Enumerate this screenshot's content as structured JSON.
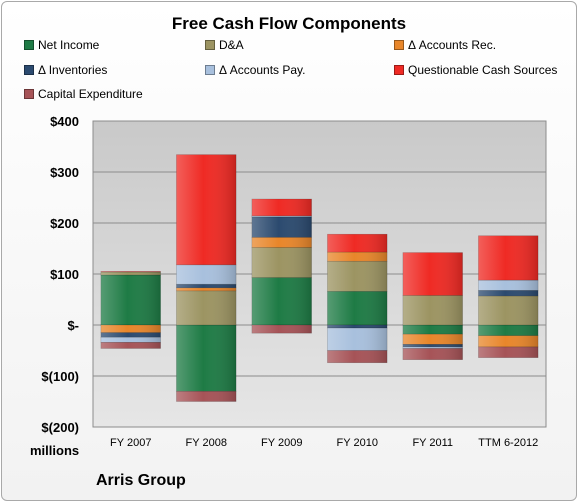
{
  "units_label": "millions",
  "company_label": "Arris Group",
  "chart_data": {
    "type": "bar",
    "stacked": true,
    "title": "Free Cash Flow Components",
    "xlabel": "",
    "ylabel": "",
    "ylim": [
      -200,
      400
    ],
    "yticks": [
      400,
      300,
      200,
      100,
      0,
      -100,
      -200
    ],
    "ytick_labels": [
      "$400",
      "$300",
      "$200",
      "$100",
      "$-",
      "$(100)",
      "$(200)"
    ],
    "grid": true,
    "legend_position": "top",
    "categories": [
      "FY 2007",
      "FY 2008",
      "FY 2009",
      "FY 2010",
      "FY 2011",
      "TTM 6-2012"
    ],
    "series": [
      {
        "name": "Net Income",
        "color": "#1e7b45",
        "values": [
          98,
          -130,
          93,
          66,
          -18,
          -21
        ]
      },
      {
        "name": "D&A",
        "color": "#9c9462",
        "values": [
          6,
          67,
          59,
          59,
          58,
          57
        ]
      },
      {
        "name": "Δ Accounts Rec.",
        "color": "#e8862a",
        "values": [
          -15,
          6,
          20,
          18,
          -20,
          -22
        ]
      },
      {
        "name": "Δ Inventories",
        "color": "#2b4a6f",
        "values": [
          -9,
          7,
          40,
          -6,
          -5,
          11
        ]
      },
      {
        "name": "Δ Accounts Pay.",
        "color": "#a8c0dd",
        "values": [
          -10,
          38,
          2,
          -44,
          -3,
          20
        ]
      },
      {
        "name": "Questionable Cash Sources",
        "color": "#ef2a24",
        "values": [
          1,
          216,
          33,
          35,
          84,
          87
        ]
      },
      {
        "name": "Capital Expenditure",
        "color": "#a65357",
        "values": [
          -12,
          -20,
          -16,
          -24,
          -22,
          -21
        ]
      }
    ]
  }
}
